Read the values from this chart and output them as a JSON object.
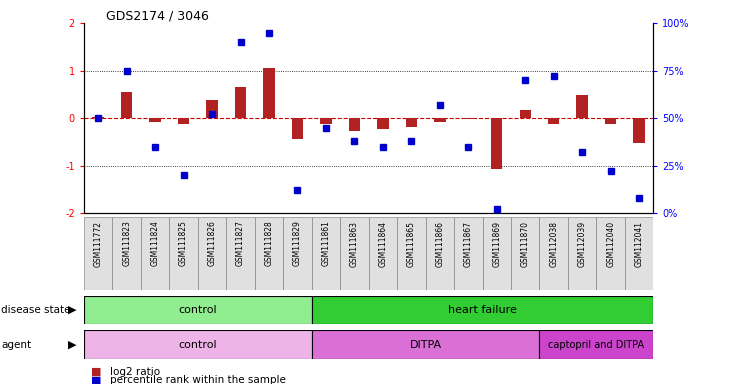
{
  "title": "GDS2174 / 3046",
  "samples": [
    "GSM111772",
    "GSM111823",
    "GSM111824",
    "GSM111825",
    "GSM111826",
    "GSM111827",
    "GSM111828",
    "GSM111829",
    "GSM111861",
    "GSM111863",
    "GSM111864",
    "GSM111865",
    "GSM111866",
    "GSM111867",
    "GSM111869",
    "GSM111870",
    "GSM112038",
    "GSM112039",
    "GSM112040",
    "GSM112041"
  ],
  "log2_ratio": [
    0.02,
    0.55,
    -0.08,
    -0.12,
    0.38,
    0.65,
    1.05,
    -0.45,
    -0.12,
    -0.28,
    -0.22,
    -0.18,
    -0.08,
    -0.02,
    -1.08,
    0.18,
    -0.12,
    0.48,
    -0.12,
    -0.52
  ],
  "percentile": [
    50,
    75,
    35,
    20,
    52,
    90,
    95,
    12,
    45,
    38,
    35,
    38,
    57,
    35,
    2,
    70,
    72,
    32,
    22,
    8
  ],
  "ylim": [
    -2,
    2
  ],
  "y2lim": [
    0,
    100
  ],
  "bar_color": "#B22222",
  "dot_color": "#0000CD",
  "hline_color": "#CC0000",
  "bg_color": "white",
  "ds_colors": [
    "#90EE90",
    "#32CD32"
  ],
  "ds_labels": [
    "control",
    "heart failure"
  ],
  "ds_starts": [
    0,
    8
  ],
  "ds_ends": [
    8,
    20
  ],
  "ag_colors": [
    "#EEB4E8",
    "#DA70D6",
    "#CC44CC"
  ],
  "ag_labels": [
    "control",
    "DITPA",
    "captopril and DITPA"
  ],
  "ag_starts": [
    0,
    8,
    16
  ],
  "ag_ends": [
    8,
    16,
    20
  ],
  "legend_bar_label": "log2 ratio",
  "legend_dot_label": "percentile rank within the sample"
}
